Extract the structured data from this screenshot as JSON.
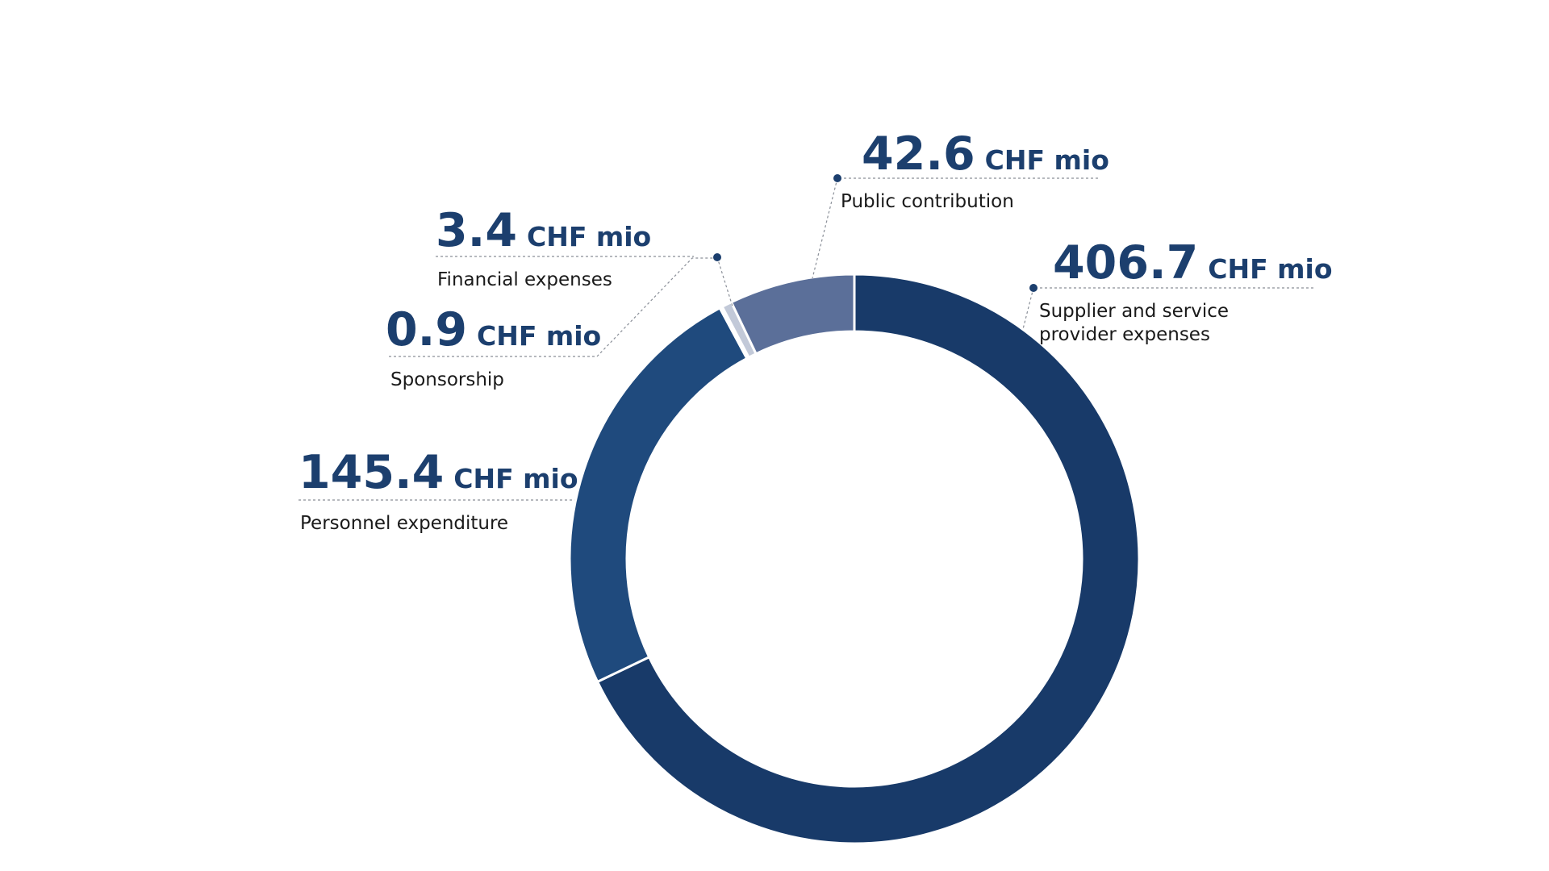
{
  "chart_data": {
    "type": "pie",
    "donut": true,
    "legend": "none",
    "unit": "CHF mio",
    "slices": [
      {
        "label": "Supplier and service provider expenses",
        "label_lines": [
          "Supplier and service",
          "provider expenses"
        ],
        "value": 406.7,
        "value_text": "406.7",
        "color": "#183a69"
      },
      {
        "label": "Personnel expenditure",
        "label_lines": [
          "Personnel expenditure"
        ],
        "value": 145.4,
        "value_text": "145.4",
        "color": "#1f4a7d"
      },
      {
        "label": "Sponsorship",
        "label_lines": [
          "Sponsorship"
        ],
        "value": 0.9,
        "value_text": "0.9",
        "color": "#ffffff"
      },
      {
        "label": "Financial expenses",
        "label_lines": [
          "Financial expenses"
        ],
        "value": 3.4,
        "value_text": "3.4",
        "color": "#c2c9d8"
      },
      {
        "label": "Public contribution",
        "label_lines": [
          "Public contribution"
        ],
        "value": 42.6,
        "value_text": "42.6",
        "color": "#5b6f99"
      }
    ],
    "value_color": "#1c3f6e",
    "leader_color": "#8a8f98"
  }
}
